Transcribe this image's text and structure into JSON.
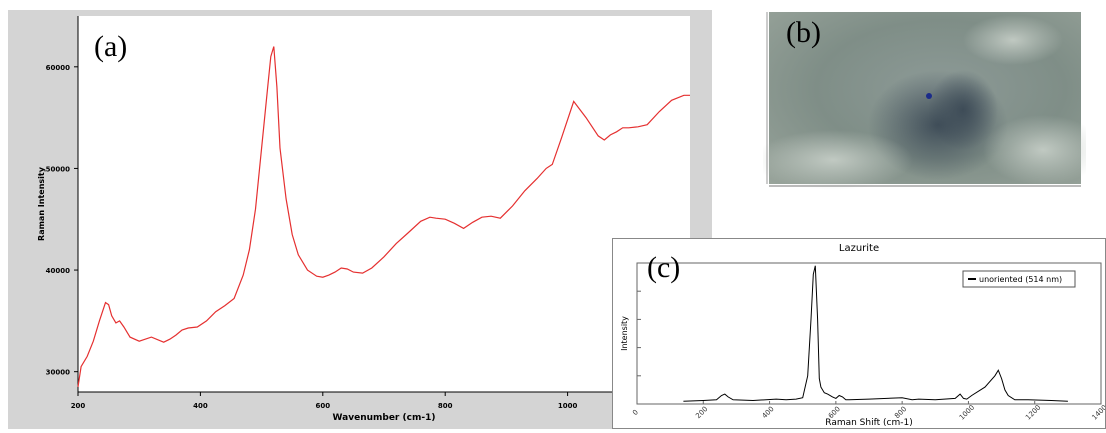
{
  "labels": {
    "a": "(a)",
    "b": "(b)",
    "c": "(c)"
  },
  "chart_data": [
    {
      "panel": "a",
      "type": "line",
      "title": "",
      "xlabel": "Wavenumber (cm-1)",
      "ylabel": "Raman Intensity",
      "xlim": [
        200,
        1200
      ],
      "ylim": [
        28000,
        65000
      ],
      "xticks": [
        200,
        400,
        600,
        800,
        1000
      ],
      "yticks": [
        30000,
        40000,
        50000,
        60000
      ],
      "series_color": "#e53030",
      "series": [
        {
          "x": [
            200,
            205,
            215,
            225,
            235,
            245,
            250,
            255,
            262,
            268,
            275,
            285,
            300,
            320,
            340,
            350,
            360,
            370,
            380,
            395,
            410,
            425,
            440,
            455,
            470,
            480,
            490,
            500,
            510,
            515,
            520,
            525,
            530,
            540,
            550,
            560,
            575,
            590,
            600,
            610,
            620,
            630,
            640,
            650,
            665,
            680,
            700,
            720,
            740,
            760,
            775,
            785,
            800,
            815,
            830,
            845,
            860,
            875,
            890,
            910,
            930,
            950,
            965,
            975,
            990,
            1010,
            1030,
            1050,
            1060,
            1070,
            1080,
            1090,
            1100,
            1115,
            1130,
            1150,
            1170,
            1190,
            1200
          ],
          "y": [
            28500,
            30500,
            31500,
            33000,
            35000,
            36800,
            36600,
            35500,
            34800,
            35000,
            34400,
            33400,
            33000,
            33400,
            32900,
            33200,
            33600,
            34100,
            34300,
            34400,
            35000,
            35900,
            36500,
            37200,
            39500,
            42000,
            46000,
            52000,
            58000,
            61000,
            62000,
            58000,
            52000,
            47000,
            43500,
            41500,
            40000,
            39400,
            39300,
            39500,
            39800,
            40200,
            40100,
            39800,
            39700,
            40200,
            41300,
            42600,
            43700,
            44800,
            45200,
            45100,
            45000,
            44600,
            44100,
            44700,
            45200,
            45300,
            45100,
            46300,
            47800,
            49000,
            50000,
            50400,
            53000,
            56600,
            55000,
            53200,
            52800,
            53300,
            53600,
            54000,
            54000,
            54100,
            54300,
            55600,
            56700,
            57200,
            57200
          ]
        }
      ]
    },
    {
      "panel": "c",
      "type": "line",
      "title": "Lazurite",
      "xlabel": "Raman Shift (cm-1)",
      "ylabel": "Intensity",
      "xlim": [
        0,
        1400
      ],
      "ylim": [
        0,
        100
      ],
      "xticks": [
        0,
        200,
        400,
        600,
        800,
        1000,
        1200,
        1400
      ],
      "legend": "unoriented (514 nm)",
      "legend_position": "top-right",
      "series": [
        {
          "name": "unoriented (514 nm)",
          "x": [
            140,
            200,
            240,
            255,
            265,
            275,
            290,
            350,
            420,
            450,
            480,
            500,
            515,
            525,
            532,
            538,
            545,
            550,
            555,
            565,
            575,
            590,
            600,
            610,
            620,
            630,
            640,
            700,
            800,
            830,
            850,
            900,
            960,
            975,
            985,
            995,
            1010,
            1050,
            1080,
            1090,
            1100,
            1110,
            1120,
            1140,
            1180,
            1250,
            1300
          ],
          "y": [
            2,
            2.5,
            3,
            6,
            7,
            5,
            3,
            2.5,
            3.5,
            3,
            3.5,
            4.5,
            20,
            60,
            92,
            98,
            60,
            18,
            12,
            8,
            7,
            5,
            4,
            6,
            5,
            3,
            3,
            3.5,
            4.5,
            3,
            3.5,
            3,
            4,
            7,
            4,
            3.5,
            6,
            12,
            20,
            24,
            18,
            10,
            6,
            3,
            3,
            2.5,
            2
          ]
        }
      ]
    }
  ]
}
